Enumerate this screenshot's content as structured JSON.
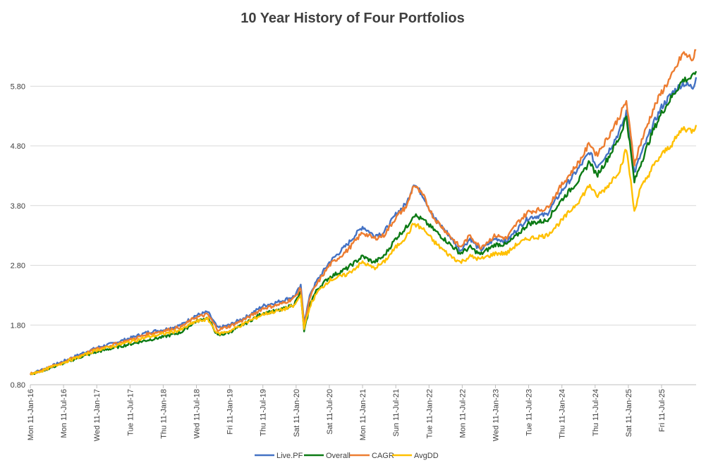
{
  "chart_data": {
    "type": "line",
    "title": "10 Year History of Four Portfolios",
    "xlabel": "",
    "ylabel": "",
    "ylim": [
      0.8,
      6.5
    ],
    "yticks": [
      0.8,
      1.8,
      2.8,
      3.8,
      4.8,
      5.8
    ],
    "ytick_labels": [
      "0.80",
      "1.80",
      "2.80",
      "3.80",
      "4.80",
      "5.80"
    ],
    "x_years": [
      2016.03,
      2016.53,
      2017.03,
      2017.53,
      2018.03,
      2018.53,
      2019.03,
      2019.53,
      2020.03,
      2020.53,
      2021.03,
      2021.53,
      2022.03,
      2022.53,
      2023.03,
      2023.53,
      2024.03,
      2024.53,
      2025.03,
      2025.53
    ],
    "xtick_labels": [
      "Mon 11-Jan-16",
      "Mon 11-Jul-16",
      "Wed 11-Jan-17",
      "Tue 11-Jul-17",
      "Thu 11-Jan-18",
      "Wed 11-Jul-18",
      "Fri 11-Jan-19",
      "Thu 11-Jul-19",
      "Sat 11-Jan-20",
      "Sat 11-Jul-20",
      "Mon 11-Jan-21",
      "Sun 11-Jul-21",
      "Tue 11-Jan-22",
      "Mon 11-Jul-22",
      "Wed 11-Jan-23",
      "Tue 11-Jul-23",
      "Thu 11-Jan-24",
      "Thu 11-Jul-24",
      "Sat 11-Jan-25",
      "Fri 11-Jul-25"
    ],
    "x_range": [
      2016.03,
      2026.05
    ],
    "grid": true,
    "legend_position": "bottom",
    "series": [
      {
        "name": "Live.PF",
        "color": "#4472C4",
        "x": [
          2016.03,
          2016.2,
          2016.5,
          2016.8,
          2017.03,
          2017.3,
          2017.53,
          2017.8,
          2018.03,
          2018.3,
          2018.5,
          2018.7,
          2018.85,
          2019.03,
          2019.3,
          2019.53,
          2019.8,
          2020.0,
          2020.1,
          2020.15,
          2020.25,
          2020.35,
          2020.53,
          2020.8,
          2021.03,
          2021.2,
          2021.35,
          2021.53,
          2021.7,
          2021.8,
          2021.95,
          2022.1,
          2022.3,
          2022.5,
          2022.65,
          2022.8,
          2023.03,
          2023.2,
          2023.35,
          2023.53,
          2023.8,
          2024.03,
          2024.3,
          2024.45,
          2024.55,
          2024.7,
          2024.9,
          2025.0,
          2025.05,
          2025.12,
          2025.2,
          2025.4,
          2025.53,
          2025.7,
          2025.85,
          2026.0,
          2026.05
        ],
        "values": [
          0.98,
          1.05,
          1.18,
          1.32,
          1.42,
          1.5,
          1.58,
          1.68,
          1.72,
          1.8,
          1.95,
          2.02,
          1.75,
          1.8,
          1.95,
          2.12,
          2.2,
          2.28,
          2.45,
          1.85,
          2.35,
          2.55,
          2.85,
          3.15,
          3.45,
          3.3,
          3.35,
          3.65,
          3.85,
          4.18,
          3.95,
          3.6,
          3.35,
          3.05,
          3.25,
          3.05,
          3.25,
          3.2,
          3.4,
          3.6,
          3.65,
          4.05,
          4.45,
          4.7,
          4.45,
          4.65,
          5.05,
          5.35,
          4.95,
          4.35,
          4.6,
          5.15,
          5.45,
          5.7,
          5.85,
          5.78,
          5.95
        ]
      },
      {
        "name": "Overall",
        "color": "#0B7A14",
        "x": [
          2016.03,
          2016.2,
          2016.5,
          2016.8,
          2017.03,
          2017.3,
          2017.53,
          2017.8,
          2018.03,
          2018.3,
          2018.5,
          2018.7,
          2018.85,
          2019.03,
          2019.3,
          2019.53,
          2019.8,
          2020.0,
          2020.1,
          2020.15,
          2020.25,
          2020.35,
          2020.53,
          2020.8,
          2021.03,
          2021.2,
          2021.35,
          2021.53,
          2021.7,
          2021.8,
          2021.95,
          2022.1,
          2022.3,
          2022.5,
          2022.65,
          2022.8,
          2023.03,
          2023.2,
          2023.35,
          2023.53,
          2023.8,
          2024.03,
          2024.3,
          2024.45,
          2024.55,
          2024.7,
          2024.9,
          2025.0,
          2025.05,
          2025.12,
          2025.2,
          2025.4,
          2025.53,
          2025.7,
          2025.85,
          2026.0,
          2026.05
        ],
        "values": [
          0.98,
          1.03,
          1.15,
          1.27,
          1.35,
          1.42,
          1.48,
          1.55,
          1.6,
          1.68,
          1.85,
          1.92,
          1.62,
          1.68,
          1.85,
          2.0,
          2.05,
          2.15,
          2.35,
          1.68,
          2.2,
          2.4,
          2.6,
          2.75,
          2.95,
          2.85,
          2.95,
          3.25,
          3.45,
          3.65,
          3.55,
          3.4,
          3.2,
          3.0,
          3.1,
          2.98,
          3.15,
          3.15,
          3.3,
          3.5,
          3.55,
          3.9,
          4.25,
          4.55,
          4.3,
          4.55,
          4.95,
          5.3,
          4.85,
          4.2,
          4.45,
          5.05,
          5.35,
          5.65,
          5.9,
          5.95,
          6.05
        ]
      },
      {
        "name": "CAGR",
        "color": "#ED7D31",
        "x": [
          2016.03,
          2016.2,
          2016.5,
          2016.8,
          2017.03,
          2017.3,
          2017.53,
          2017.8,
          2018.03,
          2018.3,
          2018.5,
          2018.7,
          2018.85,
          2019.03,
          2019.3,
          2019.53,
          2019.8,
          2020.0,
          2020.1,
          2020.15,
          2020.25,
          2020.35,
          2020.53,
          2020.8,
          2021.03,
          2021.2,
          2021.35,
          2021.53,
          2021.7,
          2021.8,
          2021.95,
          2022.1,
          2022.3,
          2022.5,
          2022.65,
          2022.8,
          2023.03,
          2023.2,
          2023.35,
          2023.53,
          2023.8,
          2024.03,
          2024.3,
          2024.45,
          2024.55,
          2024.7,
          2024.9,
          2025.0,
          2025.05,
          2025.12,
          2025.2,
          2025.4,
          2025.53,
          2025.7,
          2025.85,
          2026.0,
          2026.05
        ],
        "values": [
          0.98,
          1.04,
          1.17,
          1.3,
          1.4,
          1.48,
          1.55,
          1.65,
          1.7,
          1.77,
          1.92,
          1.98,
          1.72,
          1.78,
          1.92,
          2.08,
          2.15,
          2.25,
          2.42,
          1.8,
          2.3,
          2.5,
          2.8,
          3.05,
          3.35,
          3.25,
          3.3,
          3.6,
          3.8,
          4.15,
          3.95,
          3.6,
          3.35,
          3.1,
          3.3,
          3.1,
          3.3,
          3.25,
          3.5,
          3.7,
          3.75,
          4.15,
          4.55,
          4.85,
          4.65,
          4.9,
          5.3,
          5.55,
          5.1,
          4.5,
          4.8,
          5.4,
          5.7,
          6.0,
          6.35,
          6.25,
          6.4
        ]
      },
      {
        "name": "AvgDD",
        "color": "#FFC000",
        "x": [
          2016.03,
          2016.2,
          2016.5,
          2016.8,
          2017.03,
          2017.3,
          2017.53,
          2017.8,
          2018.03,
          2018.3,
          2018.5,
          2018.7,
          2018.85,
          2019.03,
          2019.3,
          2019.53,
          2019.8,
          2020.0,
          2020.1,
          2020.15,
          2020.25,
          2020.35,
          2020.53,
          2020.8,
          2021.03,
          2021.2,
          2021.35,
          2021.53,
          2021.7,
          2021.8,
          2021.95,
          2022.1,
          2022.3,
          2022.5,
          2022.65,
          2022.8,
          2023.03,
          2023.2,
          2023.35,
          2023.53,
          2023.8,
          2024.03,
          2024.3,
          2024.45,
          2024.55,
          2024.7,
          2024.9,
          2025.0,
          2025.05,
          2025.12,
          2025.2,
          2025.4,
          2025.53,
          2025.7,
          2025.85,
          2026.0,
          2026.05
        ],
        "values": [
          0.98,
          1.03,
          1.16,
          1.28,
          1.38,
          1.45,
          1.52,
          1.6,
          1.65,
          1.72,
          1.85,
          1.9,
          1.65,
          1.7,
          1.85,
          1.98,
          2.05,
          2.12,
          2.3,
          1.75,
          2.15,
          2.35,
          2.55,
          2.65,
          2.85,
          2.75,
          2.85,
          3.1,
          3.3,
          3.5,
          3.4,
          3.2,
          3.0,
          2.85,
          2.95,
          2.9,
          3.0,
          3.0,
          3.15,
          3.25,
          3.3,
          3.55,
          3.9,
          4.15,
          3.95,
          4.1,
          4.4,
          4.75,
          4.35,
          3.7,
          4.05,
          4.45,
          4.65,
          4.85,
          5.1,
          5.05,
          5.15
        ]
      }
    ]
  }
}
